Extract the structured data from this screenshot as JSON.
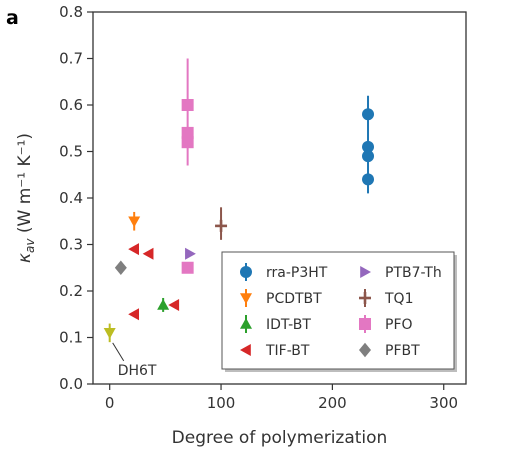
{
  "chart_data": {
    "type": "scatter",
    "panel_label": "a",
    "xlabel": "Degree of polymerization",
    "ylabel_main": "κ",
    "ylabel_sub": "av",
    "ylabel_units": " (W m⁻¹ K⁻¹)",
    "xlim": [
      -15,
      320
    ],
    "ylim": [
      0.0,
      0.8
    ],
    "xticks": [
      0,
      100,
      200,
      300
    ],
    "yticks": [
      0.0,
      0.1,
      0.2,
      0.3,
      0.4,
      0.5,
      0.6,
      0.7,
      0.8
    ],
    "xtick_labels": [
      "0",
      "100",
      "200",
      "300"
    ],
    "ytick_labels": [
      "0.0",
      "0.1",
      "0.2",
      "0.3",
      "0.4",
      "0.5",
      "0.6",
      "0.7",
      "0.8"
    ],
    "grid": false,
    "legend_placement": "lower-right",
    "annotation": {
      "text": "DH6T",
      "x": 0,
      "y": 0.11
    },
    "series": [
      {
        "name": "rra-P3HT",
        "marker": "circle",
        "color": "#1f77b4",
        "points": [
          {
            "x": 232,
            "y": 0.58
          },
          {
            "x": 232,
            "y": 0.51
          },
          {
            "x": 232,
            "y": 0.49
          },
          {
            "x": 232,
            "y": 0.44
          }
        ],
        "errorbar": {
          "x": 232,
          "ymin": 0.41,
          "ymax": 0.62
        }
      },
      {
        "name": "PCDTBT",
        "marker": "triangle-down",
        "color": "#ff7f0e",
        "points": [
          {
            "x": 22,
            "y": 0.35
          }
        ],
        "errorbar": {
          "x": 22,
          "ymin": 0.33,
          "ymax": 0.37
        }
      },
      {
        "name": "IDT-BT",
        "marker": "triangle-up",
        "color": "#2ca02c",
        "points": [
          {
            "x": 48,
            "y": 0.17
          }
        ],
        "errorbar": {
          "x": 48,
          "ymin": 0.155,
          "ymax": 0.185
        }
      },
      {
        "name": "TIF-BT",
        "marker": "triangle-left",
        "color": "#d62728",
        "points": [
          {
            "x": 22,
            "y": 0.29
          },
          {
            "x": 35,
            "y": 0.28
          },
          {
            "x": 22,
            "y": 0.15
          },
          {
            "x": 58,
            "y": 0.17
          }
        ]
      },
      {
        "name": "PTB7-Th",
        "marker": "triangle-right",
        "color": "#9467bd",
        "points": [
          {
            "x": 72,
            "y": 0.28
          }
        ]
      },
      {
        "name": "TQ1",
        "marker": "plus",
        "color": "#8c564b",
        "points": [
          {
            "x": 100,
            "y": 0.34
          }
        ],
        "errorbar": {
          "x": 100,
          "ymin": 0.31,
          "ymax": 0.38
        }
      },
      {
        "name": "PFO",
        "marker": "square",
        "color": "#e377c2",
        "points": [
          {
            "x": 70,
            "y": 0.6
          },
          {
            "x": 70,
            "y": 0.54
          },
          {
            "x": 70,
            "y": 0.52
          },
          {
            "x": 70,
            "y": 0.25
          }
        ],
        "errorbar": {
          "x": 70,
          "ymin": 0.47,
          "ymax": 0.7
        }
      },
      {
        "name": "PFBT",
        "marker": "diamond",
        "color": "#7f7f7f",
        "points": [
          {
            "x": 10,
            "y": 0.25
          }
        ]
      },
      {
        "name": "",
        "marker": "triangle-down",
        "color": "#bcbd22",
        "points": [
          {
            "x": 0,
            "y": 0.11
          }
        ],
        "errorbar": {
          "x": 0,
          "ymin": 0.09,
          "ymax": 0.13
        }
      }
    ],
    "legend_columns": [
      [
        "rra-P3HT",
        "PCDTBT",
        "IDT-BT",
        "TIF-BT"
      ],
      [
        "PTB7-Th",
        "TQ1",
        "PFO",
        "PFBT"
      ]
    ]
  }
}
